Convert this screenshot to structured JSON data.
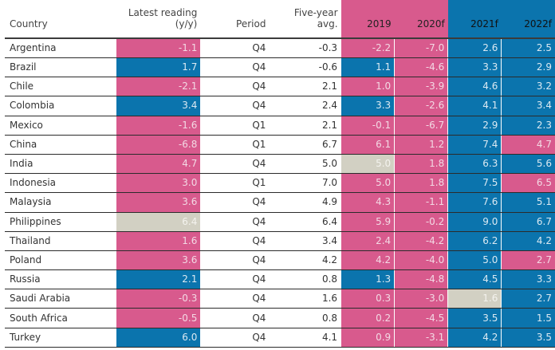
{
  "colors": {
    "pink": "#d85a8d",
    "blue": "#0b74ad",
    "grey": "#d2d0c3"
  },
  "headers": {
    "country": "Country",
    "latest_line1": "Latest reading",
    "latest_line2": "(y/y)",
    "period": "Period",
    "avg": "Five-year avg.",
    "y2019": "2019",
    "y2020": "2020f",
    "y2021": "2021f",
    "y2022": "2022f"
  },
  "rows": [
    {
      "country": "Argentina",
      "latest": {
        "v": "-1.1",
        "c": "pink"
      },
      "period": "Q4",
      "avg": "-0.3",
      "y2019": {
        "v": "-2.2",
        "c": "pink"
      },
      "y2020": {
        "v": "-7.0",
        "c": "pink"
      },
      "y2021": {
        "v": "2.6",
        "c": "blue"
      },
      "y2022": {
        "v": "2.5",
        "c": "blue"
      }
    },
    {
      "country": "Brazil",
      "latest": {
        "v": "1.7",
        "c": "blue"
      },
      "period": "Q4",
      "avg": "-0.6",
      "y2019": {
        "v": "1.1",
        "c": "blue"
      },
      "y2020": {
        "v": "-4.6",
        "c": "pink"
      },
      "y2021": {
        "v": "3.3",
        "c": "blue"
      },
      "y2022": {
        "v": "2.9",
        "c": "blue"
      }
    },
    {
      "country": "Chile",
      "latest": {
        "v": "-2.1",
        "c": "pink"
      },
      "period": "Q4",
      "avg": "2.1",
      "y2019": {
        "v": "1.0",
        "c": "pink"
      },
      "y2020": {
        "v": "-3.9",
        "c": "pink"
      },
      "y2021": {
        "v": "4.6",
        "c": "blue"
      },
      "y2022": {
        "v": "3.2",
        "c": "blue"
      }
    },
    {
      "country": "Colombia",
      "latest": {
        "v": "3.4",
        "c": "blue"
      },
      "period": "Q4",
      "avg": "2.4",
      "y2019": {
        "v": "3.3",
        "c": "blue"
      },
      "y2020": {
        "v": "-2.6",
        "c": "pink"
      },
      "y2021": {
        "v": "4.1",
        "c": "blue"
      },
      "y2022": {
        "v": "3.4",
        "c": "blue"
      }
    },
    {
      "country": "Mexico",
      "latest": {
        "v": "-1.6",
        "c": "pink"
      },
      "period": "Q1",
      "avg": "2.1",
      "y2019": {
        "v": "-0.1",
        "c": "pink"
      },
      "y2020": {
        "v": "-6.7",
        "c": "pink"
      },
      "y2021": {
        "v": "2.9",
        "c": "blue"
      },
      "y2022": {
        "v": "2.3",
        "c": "blue"
      }
    },
    {
      "country": "China",
      "latest": {
        "v": "-6.8",
        "c": "pink"
      },
      "period": "Q1",
      "avg": "6.7",
      "y2019": {
        "v": "6.1",
        "c": "pink"
      },
      "y2020": {
        "v": "1.2",
        "c": "pink"
      },
      "y2021": {
        "v": "7.4",
        "c": "blue"
      },
      "y2022": {
        "v": "4.7",
        "c": "pink"
      }
    },
    {
      "country": "India",
      "latest": {
        "v": "4.7",
        "c": "pink"
      },
      "period": "Q4",
      "avg": "5.0",
      "y2019": {
        "v": "5.0",
        "c": "grey"
      },
      "y2020": {
        "v": "1.8",
        "c": "pink"
      },
      "y2021": {
        "v": "6.3",
        "c": "blue"
      },
      "y2022": {
        "v": "5.6",
        "c": "blue"
      }
    },
    {
      "country": "Indonesia",
      "latest": {
        "v": "3.0",
        "c": "pink"
      },
      "period": "Q1",
      "avg": "7.0",
      "y2019": {
        "v": "5.0",
        "c": "pink"
      },
      "y2020": {
        "v": "1.8",
        "c": "pink"
      },
      "y2021": {
        "v": "7.5",
        "c": "blue"
      },
      "y2022": {
        "v": "6.5",
        "c": "pink"
      }
    },
    {
      "country": "Malaysia",
      "latest": {
        "v": "3.6",
        "c": "pink"
      },
      "period": "Q4",
      "avg": "4.9",
      "y2019": {
        "v": "4.3",
        "c": "pink"
      },
      "y2020": {
        "v": "-1.1",
        "c": "pink"
      },
      "y2021": {
        "v": "7.6",
        "c": "blue"
      },
      "y2022": {
        "v": "5.1",
        "c": "blue"
      }
    },
    {
      "country": "Philippines",
      "latest": {
        "v": "6.4",
        "c": "grey"
      },
      "period": "Q4",
      "avg": "6.4",
      "y2019": {
        "v": "5.9",
        "c": "pink"
      },
      "y2020": {
        "v": "-0.2",
        "c": "pink"
      },
      "y2021": {
        "v": "9.0",
        "c": "blue"
      },
      "y2022": {
        "v": "6.7",
        "c": "blue"
      }
    },
    {
      "country": "Thailand",
      "latest": {
        "v": "1.6",
        "c": "pink"
      },
      "period": "Q4",
      "avg": "3.4",
      "y2019": {
        "v": "2.4",
        "c": "pink"
      },
      "y2020": {
        "v": "-4.2",
        "c": "pink"
      },
      "y2021": {
        "v": "6.2",
        "c": "blue"
      },
      "y2022": {
        "v": "4.2",
        "c": "blue"
      }
    },
    {
      "country": "Poland",
      "latest": {
        "v": "3.6",
        "c": "pink"
      },
      "period": "Q4",
      "avg": "4.2",
      "y2019": {
        "v": "4.2",
        "c": "pink"
      },
      "y2020": {
        "v": "-4.0",
        "c": "pink"
      },
      "y2021": {
        "v": "5.0",
        "c": "blue"
      },
      "y2022": {
        "v": "2.7",
        "c": "pink"
      }
    },
    {
      "country": "Russia",
      "latest": {
        "v": "2.1",
        "c": "blue"
      },
      "period": "Q4",
      "avg": "0.8",
      "y2019": {
        "v": "1.3",
        "c": "blue"
      },
      "y2020": {
        "v": "-4.8",
        "c": "pink"
      },
      "y2021": {
        "v": "4.5",
        "c": "blue"
      },
      "y2022": {
        "v": "3.3",
        "c": "blue"
      }
    },
    {
      "country": "Saudi Arabia",
      "latest": {
        "v": "-0.3",
        "c": "pink"
      },
      "period": "Q4",
      "avg": "1.6",
      "y2019": {
        "v": "0.3",
        "c": "pink"
      },
      "y2020": {
        "v": "-3.0",
        "c": "pink"
      },
      "y2021": {
        "v": "1.6",
        "c": "grey"
      },
      "y2022": {
        "v": "2.7",
        "c": "blue"
      }
    },
    {
      "country": "South Africa",
      "latest": {
        "v": "-0.5",
        "c": "pink"
      },
      "period": "Q4",
      "avg": "0.8",
      "y2019": {
        "v": "0.2",
        "c": "pink"
      },
      "y2020": {
        "v": "-4.5",
        "c": "pink"
      },
      "y2021": {
        "v": "3.5",
        "c": "blue"
      },
      "y2022": {
        "v": "1.5",
        "c": "blue"
      }
    },
    {
      "country": "Turkey",
      "latest": {
        "v": "6.0",
        "c": "blue"
      },
      "period": "Q4",
      "avg": "4.1",
      "y2019": {
        "v": "0.9",
        "c": "pink"
      },
      "y2020": {
        "v": "-3.1",
        "c": "pink"
      },
      "y2021": {
        "v": "4.2",
        "c": "blue"
      },
      "y2022": {
        "v": "3.5",
        "c": "blue"
      }
    }
  ]
}
